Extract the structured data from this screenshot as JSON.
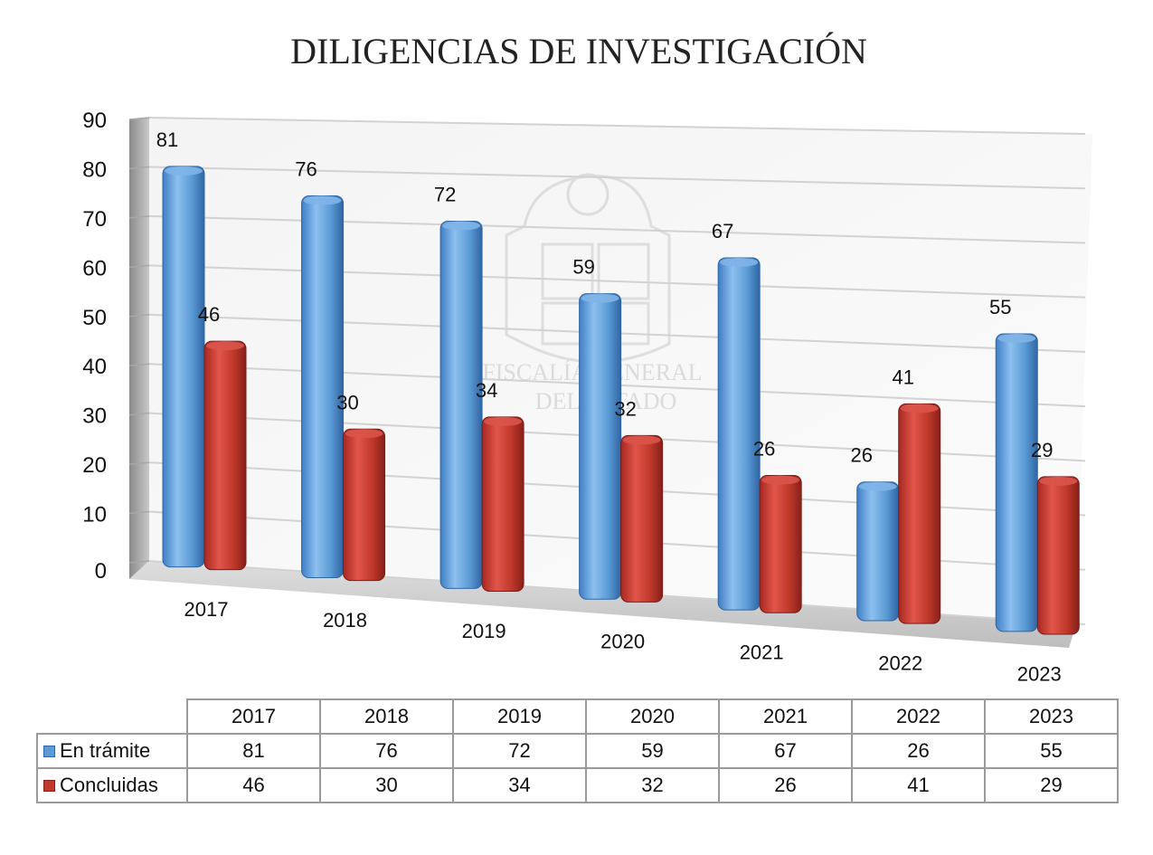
{
  "chart_data": {
    "type": "bar",
    "title": "DILIGENCIAS DE INVESTIGACIÓN",
    "categories": [
      "2017",
      "2018",
      "2019",
      "2020",
      "2021",
      "2022",
      "2023"
    ],
    "series": [
      {
        "name": "En trámite",
        "values": [
          81,
          76,
          72,
          59,
          67,
          26,
          55
        ],
        "color": "#5b9bd5"
      },
      {
        "name": "Concluidas",
        "values": [
          46,
          30,
          34,
          32,
          26,
          41,
          29
        ],
        "color": "#c0392b"
      }
    ],
    "ylim": [
      0,
      90
    ],
    "yticks": [
      0,
      10,
      20,
      30,
      40,
      50,
      60,
      70,
      80,
      90
    ],
    "grid": true,
    "legend": "table-bottom",
    "style": "3d-column",
    "watermark_text": [
      "FISCALÍA GENERAL",
      "DEL ESTADO"
    ]
  }
}
